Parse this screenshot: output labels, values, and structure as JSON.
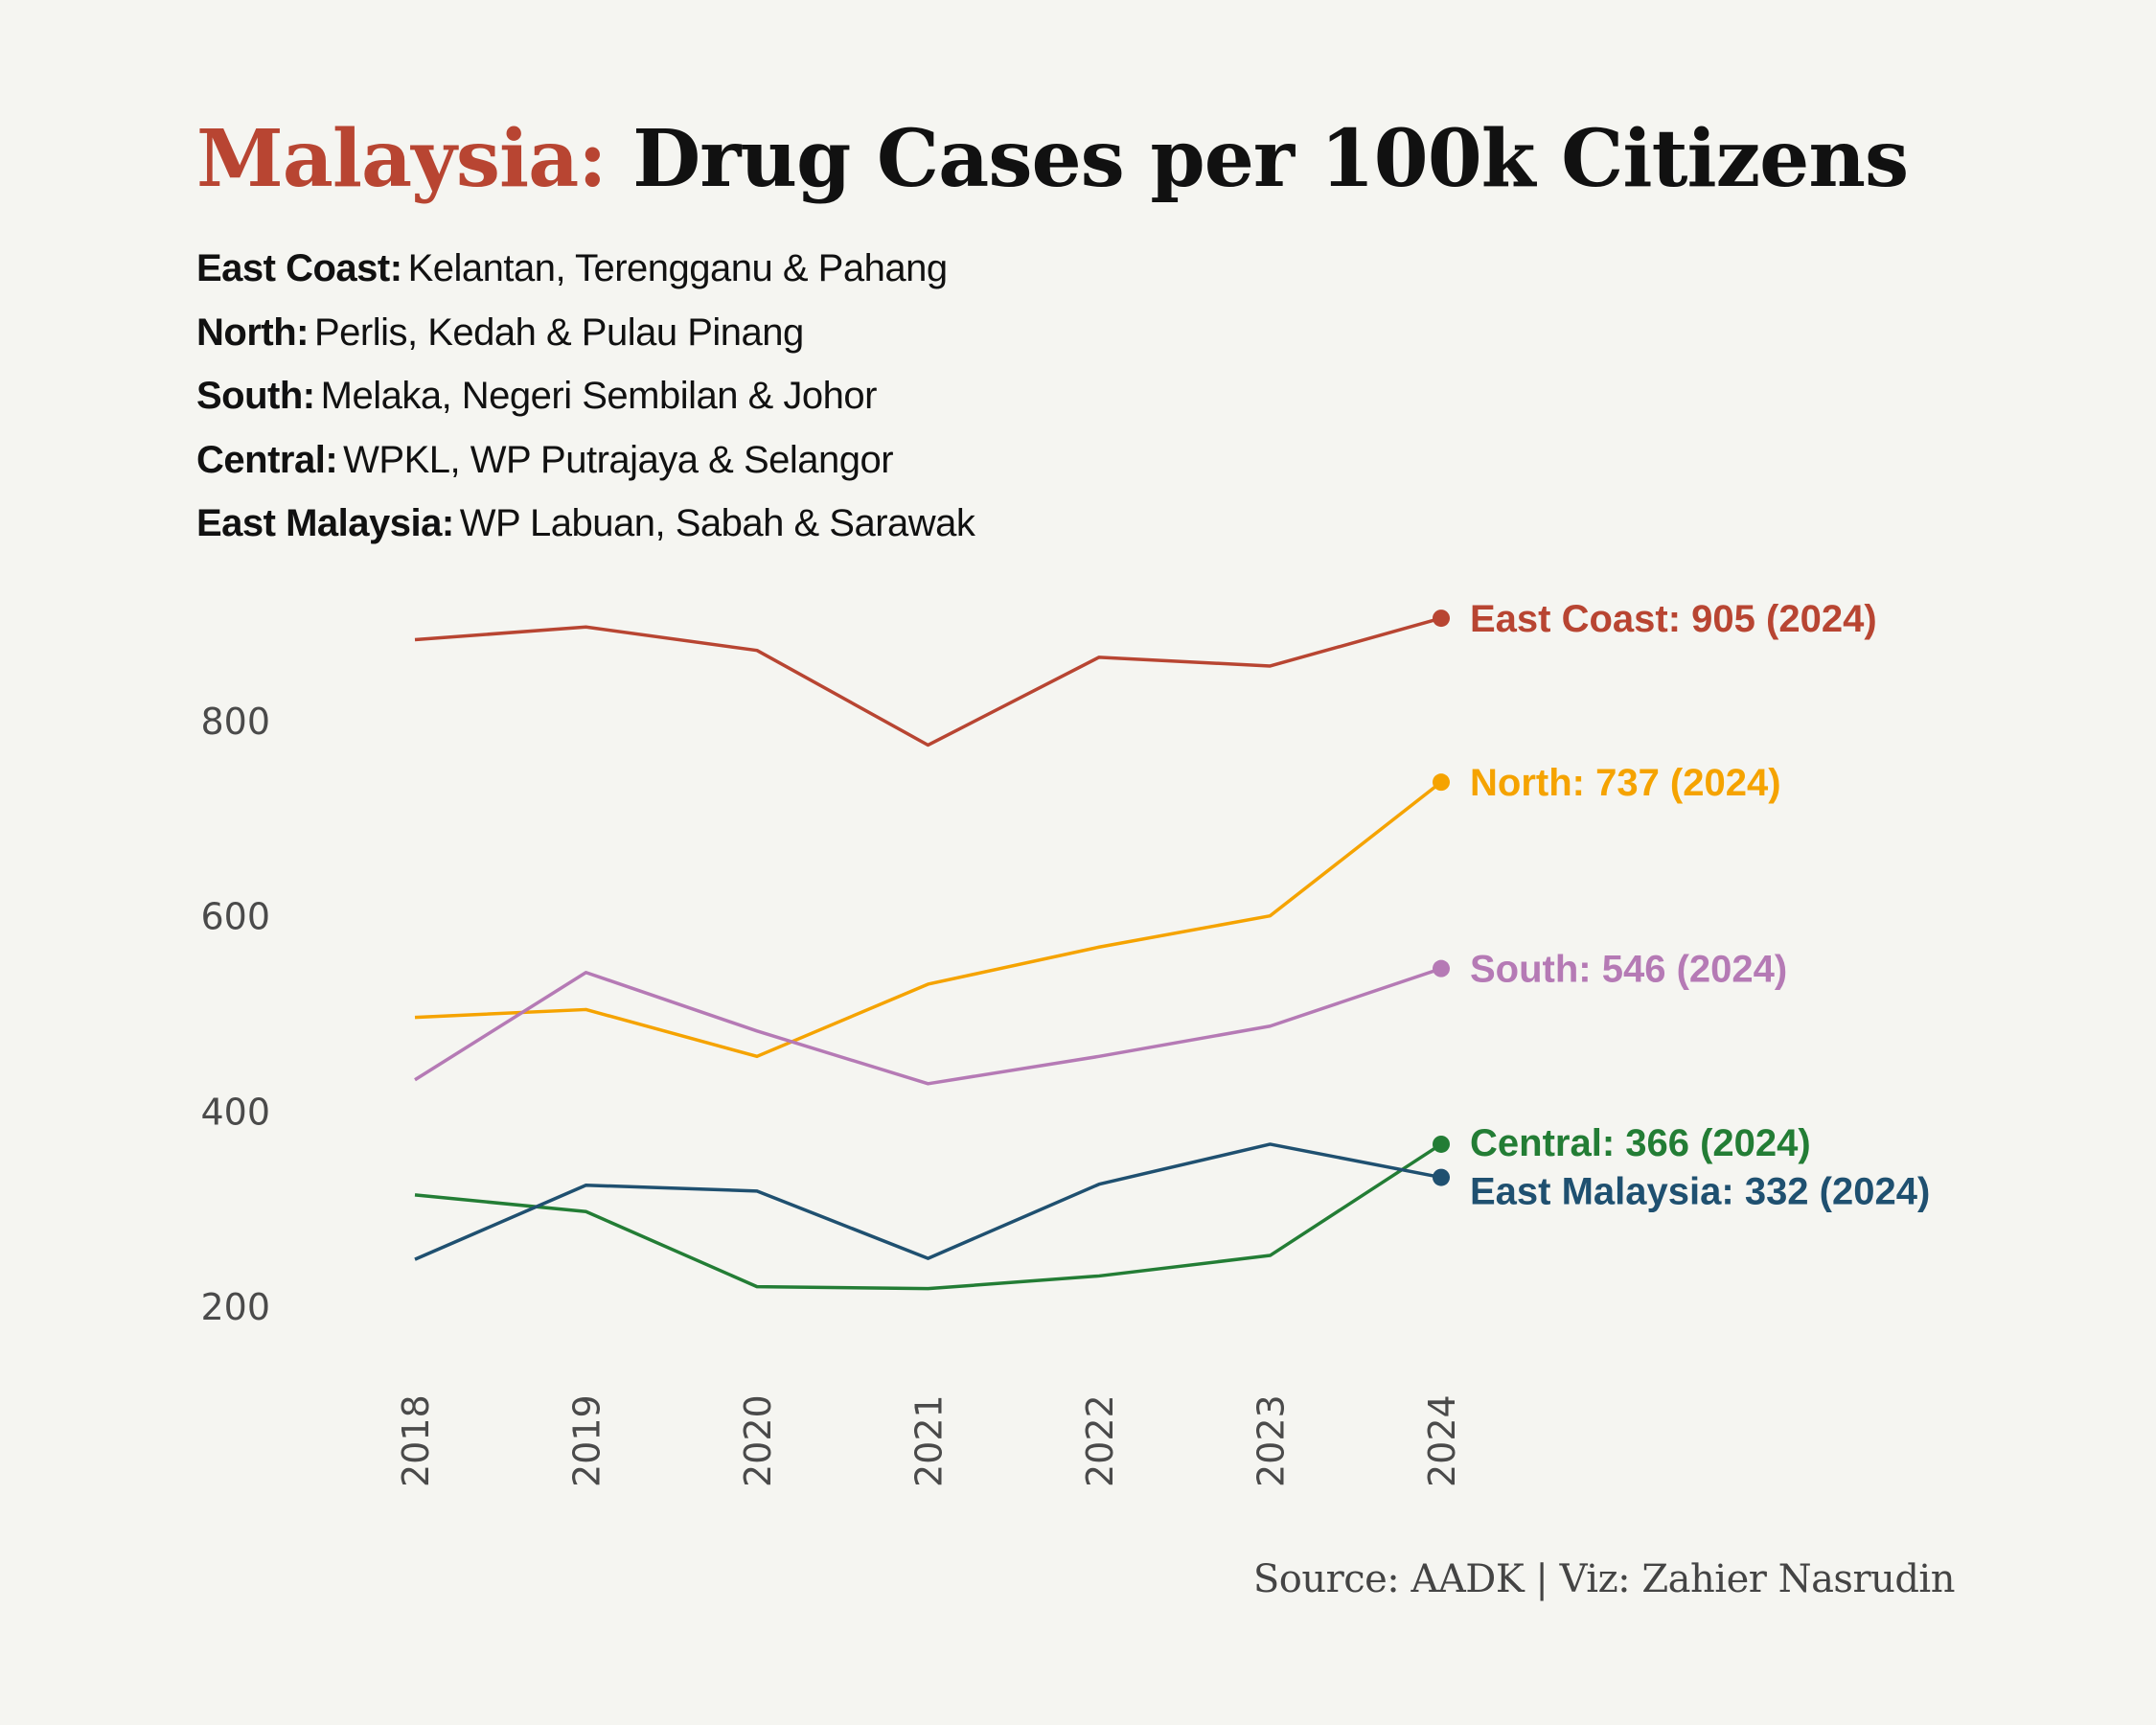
{
  "title": {
    "accent": "Malaysia:",
    "main": "Drug Cases per 100k Citizens"
  },
  "legend": [
    {
      "key": "East Coast:",
      "states": "Kelantan,  Terengganu & Pahang"
    },
    {
      "key": "North:",
      "states": "Perlis, Kedah & Pulau Pinang"
    },
    {
      "key": "South:",
      "states": "Melaka, Negeri Sembilan & Johor"
    },
    {
      "key": "Central:",
      "states": "WPKL, WP Putrajaya & Selangor"
    },
    {
      "key": "East Malaysia:",
      "states": "WP Labuan, Sabah & Sarawak"
    }
  ],
  "source": "Source: AADK | Viz: Zahier Nasrudin",
  "chart_data": {
    "type": "line",
    "title": "Malaysia: Drug Cases per 100k Citizens",
    "xlabel": "",
    "ylabel": "",
    "x": [
      "2018",
      "2019",
      "2020",
      "2021",
      "2022",
      "2023",
      "2024"
    ],
    "yticks": [
      200,
      400,
      600,
      800
    ],
    "ylim": [
      130,
      930
    ],
    "grid": false,
    "legend": "end-labels",
    "series": [
      {
        "name": "East Coast",
        "color": "#b84532",
        "values": [
          883,
          896,
          872,
          775,
          865,
          856,
          905
        ],
        "end_label": "East Coast: 905 (2024)"
      },
      {
        "name": "North",
        "color": "#f5a300",
        "values": [
          496,
          504,
          456,
          530,
          568,
          600,
          737
        ],
        "end_label": "North: 737 (2024)"
      },
      {
        "name": "South",
        "color": "#b57ab5",
        "values": [
          432,
          542,
          482,
          428,
          456,
          487,
          546
        ],
        "end_label": "South: 546 (2024)"
      },
      {
        "name": "Central",
        "color": "#237d35",
        "values": [
          314,
          297,
          220,
          218,
          231,
          252,
          366
        ],
        "end_label": "Central: 366 (2024)"
      },
      {
        "name": "East Malaysia",
        "color": "#1f5070",
        "values": [
          248,
          324,
          318,
          249,
          325,
          366,
          332
        ],
        "end_label": "East Malaysia: 332 (2024)"
      }
    ]
  }
}
